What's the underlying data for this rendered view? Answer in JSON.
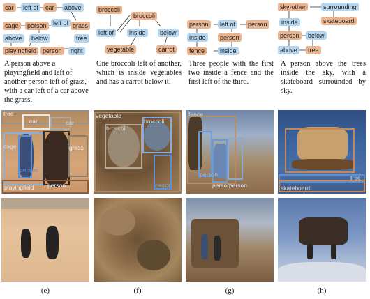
{
  "columns": [
    {
      "graph_nodes": [
        "car",
        "left of",
        "car",
        "above",
        "cage",
        "person",
        "left of",
        "grass",
        "above",
        "below",
        "tree",
        "playingfield",
        "person",
        "right"
      ],
      "caption": "A person above a playingfield and left of another person left of grass, with a car left of a car above the grass.",
      "box_labels": [
        "tree",
        "car",
        "car",
        "cage",
        "person",
        "grass",
        "playingfield",
        "person"
      ],
      "figure_label": "(e)"
    },
    {
      "graph_nodes": [
        "broccoli",
        "broccoli",
        "left of",
        "inside",
        "below",
        "vegetable",
        "carrot"
      ],
      "caption": "One broccoli left of another, which is inside vegetables and has a carrot below it.",
      "box_labels": [
        "vegetable",
        "broccoli",
        "broccoli",
        "carrot"
      ],
      "figure_label": "(f)"
    },
    {
      "graph_nodes": [
        "person",
        "left of",
        "person",
        "inside",
        "person",
        "fence",
        "inside"
      ],
      "caption": "Three people with the first two inside a fence and the first left of the third.",
      "box_labels": [
        "fence",
        "person",
        "person",
        "person"
      ],
      "figure_label": "(g)"
    },
    {
      "graph_nodes": [
        "sky-other",
        "surrounding",
        "inside",
        "skateboard",
        "person",
        "below",
        "above",
        "tree"
      ],
      "caption": "A person above the trees inside the sky, with a skateboard surrounded by sky.",
      "box_labels": [
        "tree",
        "skateboard"
      ],
      "figure_label": "(h)"
    }
  ],
  "colors": {
    "object": "#e9b591",
    "relation": "#b5d5ee"
  }
}
